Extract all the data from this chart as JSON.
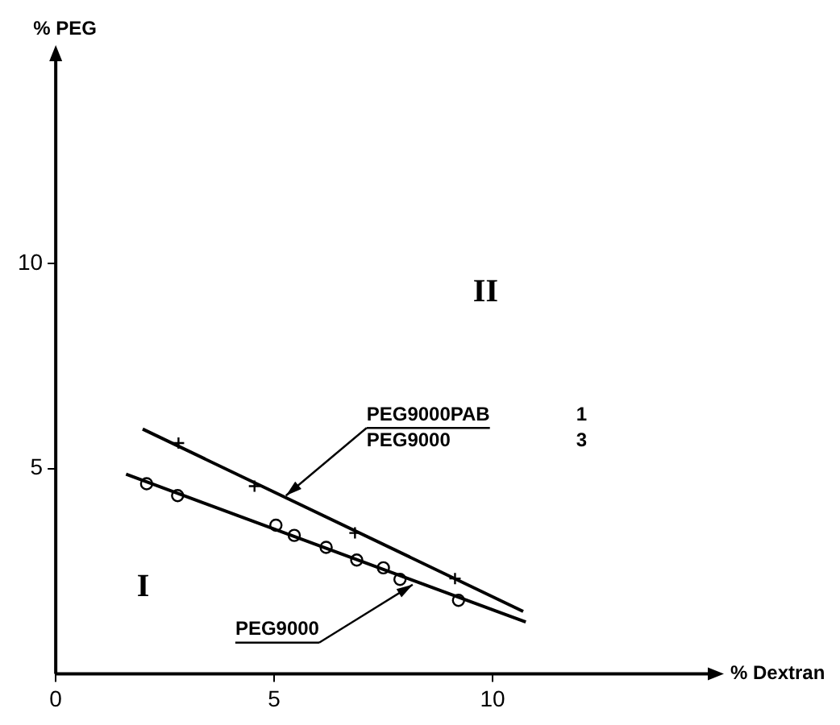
{
  "chart_data": {
    "type": "scatter",
    "xlabel": "% Dextran",
    "ylabel": "% PEG",
    "xlim": [
      0,
      15
    ],
    "ylim": [
      0,
      15
    ],
    "xticks": [
      0,
      5,
      10
    ],
    "yticks": [
      5,
      10
    ],
    "grid": false,
    "legend": false,
    "series": [
      {
        "type": "line",
        "color": "#000000",
        "marker": "none",
        "x": [
          1.99,
          10.7
        ],
        "values": [
          5.96,
          1.52
        ]
      },
      {
        "color": "#000000",
        "marker": "cross",
        "x": [
          2.81,
          4.55,
          6.85,
          9.14
        ],
        "values": [
          5.62,
          4.57,
          3.43,
          2.32
        ]
      },
      {
        "type": "line",
        "color": "#000000",
        "marker": "none",
        "x": [
          1.61,
          10.76
        ],
        "values": [
          4.86,
          1.26
        ]
      },
      {
        "color": "#000000",
        "marker": "circle",
        "x": [
          2.08,
          2.79,
          5.04,
          5.46,
          6.19,
          6.89,
          7.5,
          7.88,
          9.22
        ],
        "values": [
          4.63,
          4.34,
          3.62,
          3.37,
          3.08,
          2.77,
          2.58,
          2.3,
          1.79
        ]
      }
    ],
    "annotations": [
      {
        "text": "PEG9000PAB",
        "x": 5.27,
        "y": 4.34
      },
      "PEG9000",
      "1",
      "3",
      {
        "text": "PEG9000",
        "x": 8.17,
        "y": 2.17
      },
      "I",
      "II"
    ]
  }
}
